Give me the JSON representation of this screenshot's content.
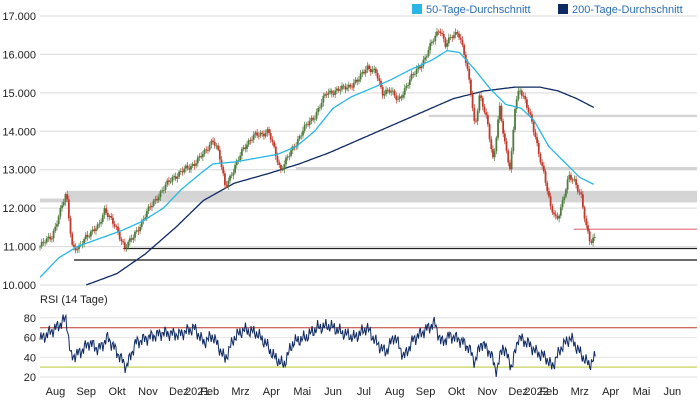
{
  "chart_data": [
    {
      "type": "candlestick",
      "y_tick_labels": [
        "10.000",
        "11.000",
        "12.000",
        "13.000",
        "14.000",
        "15.000",
        "16.000",
        "17.000"
      ],
      "y_ticks": [
        10000,
        11000,
        12000,
        13000,
        14000,
        15000,
        16000,
        17000
      ],
      "ylim": [
        10000,
        17000
      ],
      "x_tick_labels": [
        "Aug",
        "Sep",
        "Okt",
        "Nov",
        "Dez",
        "2021",
        "Feb",
        "Mrz",
        "Apr",
        "Mai",
        "Jun",
        "Jul",
        "Aug",
        "Sep",
        "Okt",
        "Nov",
        "Dez",
        "2022",
        "Feb",
        "Mrz",
        "Apr",
        "Mai",
        "Jun"
      ],
      "x_tick_months": [
        0.5,
        1.5,
        2.5,
        3.5,
        4.5,
        5.1,
        5.5,
        6.5,
        7.5,
        8.5,
        9.5,
        10.5,
        11.5,
        12.5,
        13.5,
        14.5,
        15.5,
        16.1,
        16.5,
        17.5,
        18.5,
        19.5,
        20.5
      ],
      "xlim_months": [
        0,
        21.3
      ],
      "grid": true,
      "legend_position": "top-right",
      "price_anchors": [
        [
          0,
          11000
        ],
        [
          0.4,
          11300
        ],
        [
          0.7,
          12000
        ],
        [
          0.85,
          12400
        ],
        [
          1.05,
          11000
        ],
        [
          1.25,
          10900
        ],
        [
          1.5,
          11300
        ],
        [
          1.9,
          11500
        ],
        [
          2.1,
          12000
        ],
        [
          2.5,
          11400
        ],
        [
          2.75,
          11000
        ],
        [
          3.0,
          11200
        ],
        [
          3.4,
          11800
        ],
        [
          3.8,
          12300
        ],
        [
          4.3,
          12800
        ],
        [
          4.9,
          13100
        ],
        [
          5.3,
          13400
        ],
        [
          5.6,
          13800
        ],
        [
          5.8,
          13400
        ],
        [
          6.0,
          12600
        ],
        [
          6.3,
          13000
        ],
        [
          6.6,
          13600
        ],
        [
          7.0,
          13900
        ],
        [
          7.4,
          14000
        ],
        [
          7.6,
          13500
        ],
        [
          7.8,
          13000
        ],
        [
          8.1,
          13400
        ],
        [
          8.5,
          14000
        ],
        [
          8.9,
          14400
        ],
        [
          9.3,
          15000
        ],
        [
          9.8,
          15100
        ],
        [
          10.3,
          15300
        ],
        [
          10.6,
          15700
        ],
        [
          10.9,
          15500
        ],
        [
          11.1,
          15000
        ],
        [
          11.3,
          15100
        ],
        [
          11.6,
          14800
        ],
        [
          11.9,
          15200
        ],
        [
          12.2,
          15600
        ],
        [
          12.5,
          15900
        ],
        [
          12.75,
          16400
        ],
        [
          12.95,
          16700
        ],
        [
          13.15,
          16200
        ],
        [
          13.35,
          16500
        ],
        [
          13.55,
          16600
        ],
        [
          13.75,
          16000
        ],
        [
          13.95,
          15200
        ],
        [
          14.1,
          14100
        ],
        [
          14.25,
          14900
        ],
        [
          14.5,
          14300
        ],
        [
          14.7,
          13200
        ],
        [
          14.9,
          14600
        ],
        [
          15.05,
          13800
        ],
        [
          15.25,
          13000
        ],
        [
          15.4,
          14600
        ],
        [
          15.55,
          15100
        ],
        [
          15.75,
          14800
        ],
        [
          15.95,
          14200
        ],
        [
          16.15,
          13500
        ],
        [
          16.35,
          12900
        ],
        [
          16.55,
          12000
        ],
        [
          16.75,
          11700
        ],
        [
          16.95,
          12200
        ],
        [
          17.15,
          12800
        ],
        [
          17.35,
          12700
        ],
        [
          17.55,
          12300
        ],
        [
          17.7,
          11500
        ],
        [
          17.85,
          11100
        ],
        [
          18.0,
          11300
        ]
      ],
      "ma50_anchors": [
        [
          0,
          10200
        ],
        [
          0.6,
          10700
        ],
        [
          1.2,
          11000
        ],
        [
          1.9,
          11200
        ],
        [
          2.6,
          11400
        ],
        [
          3.3,
          11650
        ],
        [
          4.0,
          12000
        ],
        [
          4.6,
          12500
        ],
        [
          5.2,
          12900
        ],
        [
          5.6,
          13150
        ],
        [
          6.3,
          13200
        ],
        [
          7.0,
          13300
        ],
        [
          7.7,
          13400
        ],
        [
          8.3,
          13600
        ],
        [
          8.9,
          14000
        ],
        [
          9.5,
          14600
        ],
        [
          10.1,
          14900
        ],
        [
          10.7,
          15100
        ],
        [
          11.4,
          15350
        ],
        [
          12.0,
          15600
        ],
        [
          12.7,
          15850
        ],
        [
          13.2,
          16100
        ],
        [
          13.6,
          16050
        ],
        [
          14.1,
          15600
        ],
        [
          14.6,
          15100
        ],
        [
          15.1,
          14700
        ],
        [
          15.6,
          14600
        ],
        [
          16.0,
          14300
        ],
        [
          16.5,
          13600
        ],
        [
          17.0,
          13200
        ],
        [
          17.5,
          12800
        ],
        [
          18.0,
          12600
        ]
      ],
      "ma200_anchors": [
        [
          1.5,
          10000
        ],
        [
          2.5,
          10300
        ],
        [
          3.4,
          10800
        ],
        [
          4.4,
          11500
        ],
        [
          5.3,
          12200
        ],
        [
          6.3,
          12650
        ],
        [
          7.4,
          12900
        ],
        [
          8.4,
          13150
        ],
        [
          9.4,
          13450
        ],
        [
          10.4,
          13800
        ],
        [
          11.4,
          14150
        ],
        [
          12.4,
          14500
        ],
        [
          13.4,
          14850
        ],
        [
          14.4,
          15050
        ],
        [
          15.4,
          15150
        ],
        [
          16.2,
          15150
        ],
        [
          16.8,
          15050
        ],
        [
          17.4,
          14850
        ],
        [
          18.0,
          14600
        ]
      ],
      "support_bands": [
        {
          "y_low": 12250,
          "y_high": 12450,
          "x_start": 0.88
        },
        {
          "y_low": 12150,
          "y_high": 12250,
          "x_start": 0.0
        },
        {
          "y_low": 12990,
          "y_high": 13070,
          "x_start": 8.3
        },
        {
          "y_low": 14370,
          "y_high": 14430,
          "x_start": 12.6
        }
      ],
      "support_lines": [
        {
          "y": 10950,
          "x_start": 2.7,
          "color": "#222222"
        },
        {
          "y": 10650,
          "x_start": 1.1,
          "color": "#111111"
        },
        {
          "y": 11450,
          "x_start": 17.3,
          "color": "#e57c8a"
        }
      ],
      "series": [
        {
          "name": "50-Tage-Durchschnitt",
          "color": "#29b6e6"
        },
        {
          "name": "200-Tage-Durchschnitt",
          "color": "#0f2a63"
        }
      ],
      "candle_up_color": "#4f7a3e",
      "candle_down_color": "#c0392b"
    },
    {
      "type": "line",
      "title": "RSI (14 Tage)",
      "y_tick_labels": [
        "20",
        "40",
        "60",
        "80"
      ],
      "y_ticks": [
        20,
        40,
        60,
        80
      ],
      "ylim": [
        20,
        85
      ],
      "upper_line": {
        "value": 70,
        "color": "#c0392b"
      },
      "lower_line": {
        "value": 30,
        "color": "#c8d45a"
      },
      "line_color": "#0f2a63",
      "rsi_anchors": [
        [
          0,
          58
        ],
        [
          0.3,
          65
        ],
        [
          0.6,
          72
        ],
        [
          0.85,
          80
        ],
        [
          1.0,
          40
        ],
        [
          1.3,
          45
        ],
        [
          1.6,
          55
        ],
        [
          1.9,
          48
        ],
        [
          2.2,
          60
        ],
        [
          2.5,
          45
        ],
        [
          2.8,
          30
        ],
        [
          3.1,
          55
        ],
        [
          3.5,
          60
        ],
        [
          4.0,
          65
        ],
        [
          4.5,
          63
        ],
        [
          5.0,
          70
        ],
        [
          5.3,
          55
        ],
        [
          5.6,
          62
        ],
        [
          6.0,
          38
        ],
        [
          6.3,
          60
        ],
        [
          6.6,
          68
        ],
        [
          7.0,
          65
        ],
        [
          7.3,
          55
        ],
        [
          7.6,
          40
        ],
        [
          7.9,
          32
        ],
        [
          8.2,
          55
        ],
        [
          8.6,
          60
        ],
        [
          9.0,
          70
        ],
        [
          9.4,
          72
        ],
        [
          9.8,
          65
        ],
        [
          10.2,
          60
        ],
        [
          10.6,
          70
        ],
        [
          10.9,
          55
        ],
        [
          11.2,
          45
        ],
        [
          11.5,
          62
        ],
        [
          11.8,
          40
        ],
        [
          12.1,
          58
        ],
        [
          12.5,
          68
        ],
        [
          12.8,
          75
        ],
        [
          13.0,
          55
        ],
        [
          13.3,
          62
        ],
        [
          13.6,
          58
        ],
        [
          13.9,
          50
        ],
        [
          14.1,
          35
        ],
        [
          14.3,
          55
        ],
        [
          14.6,
          45
        ],
        [
          14.8,
          25
        ],
        [
          15.0,
          52
        ],
        [
          15.3,
          30
        ],
        [
          15.5,
          60
        ],
        [
          15.8,
          55
        ],
        [
          16.1,
          45
        ],
        [
          16.4,
          40
        ],
        [
          16.6,
          30
        ],
        [
          16.9,
          50
        ],
        [
          17.2,
          60
        ],
        [
          17.5,
          45
        ],
        [
          17.8,
          32
        ],
        [
          18.0,
          40
        ]
      ],
      "grid": true
    }
  ]
}
